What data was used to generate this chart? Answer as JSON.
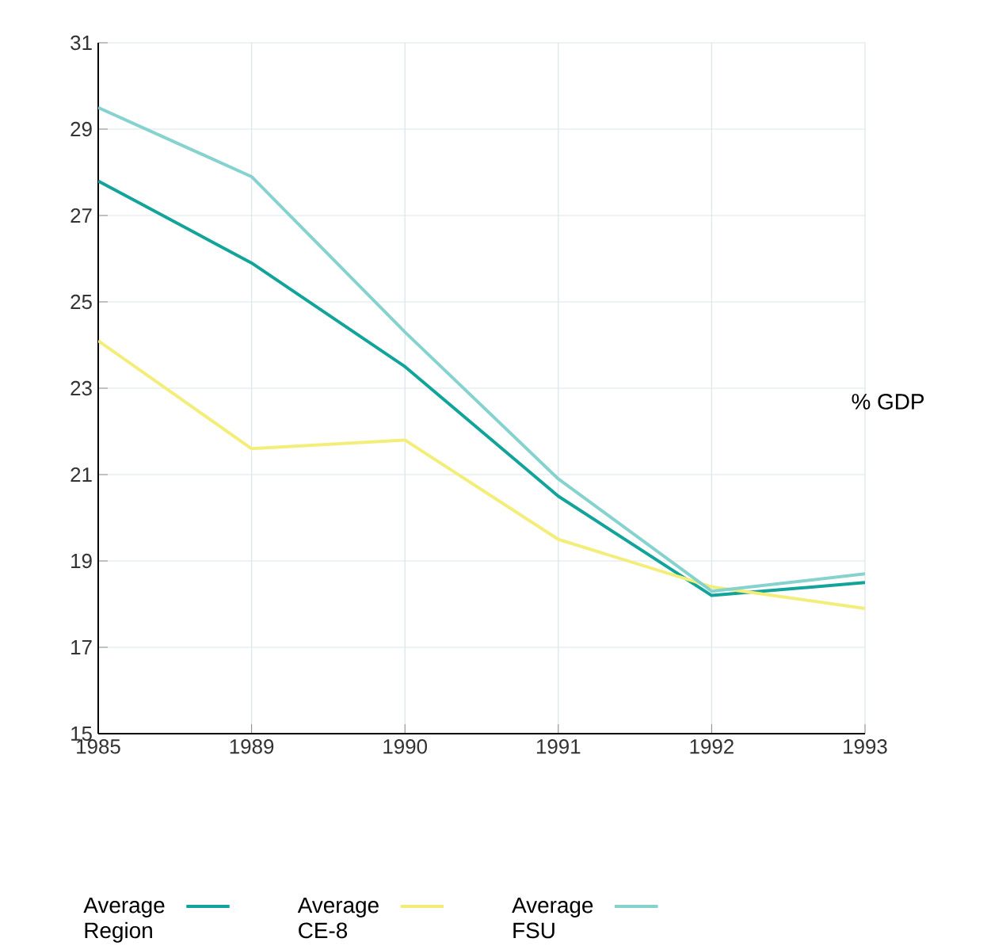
{
  "chart_data": {
    "type": "line",
    "ylabel": "% GDP",
    "categories": [
      "1985",
      "1989",
      "1990",
      "1991",
      "1992",
      "1993"
    ],
    "series": [
      {
        "name": "Average Region",
        "color": "#12a39a",
        "values": [
          27.8,
          25.9,
          23.5,
          20.5,
          18.2,
          18.5
        ]
      },
      {
        "name": "Average CE-8",
        "color": "#f3ee7a",
        "values": [
          24.1,
          21.6,
          21.8,
          19.5,
          18.4,
          17.9
        ]
      },
      {
        "name": "Average FSU",
        "color": "#86d2cf",
        "values": [
          29.5,
          27.9,
          24.3,
          20.9,
          18.3,
          18.7
        ]
      }
    ],
    "ylim": [
      15,
      31
    ],
    "yticks": [
      15,
      17,
      19,
      21,
      23,
      25,
      27,
      29,
      31
    ],
    "grid": true,
    "legend": "bottom",
    "marker": "none",
    "line_style": "solid"
  }
}
